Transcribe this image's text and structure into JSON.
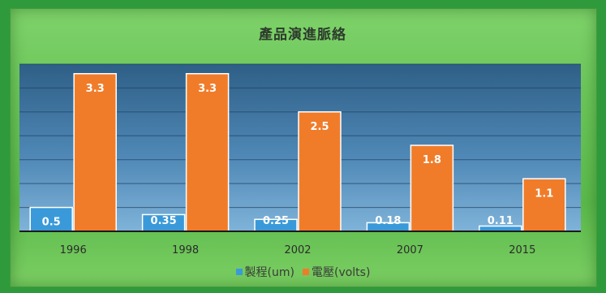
{
  "chart_data": {
    "type": "bar",
    "title": "產品演進脈絡",
    "categories": [
      "1996",
      "1998",
      "2002",
      "2007",
      "2015"
    ],
    "series": [
      {
        "name": "製程(um)",
        "values": [
          0.5,
          0.35,
          0.25,
          0.18,
          0.11
        ],
        "color": "#3a9ad9"
      },
      {
        "name": "電壓(volts)",
        "values": [
          3.3,
          3.3,
          2.5,
          1.8,
          1.1
        ],
        "color": "#f07c2a"
      }
    ],
    "ylim": [
      0,
      3.5
    ],
    "grid": true,
    "legend": "bottom"
  }
}
